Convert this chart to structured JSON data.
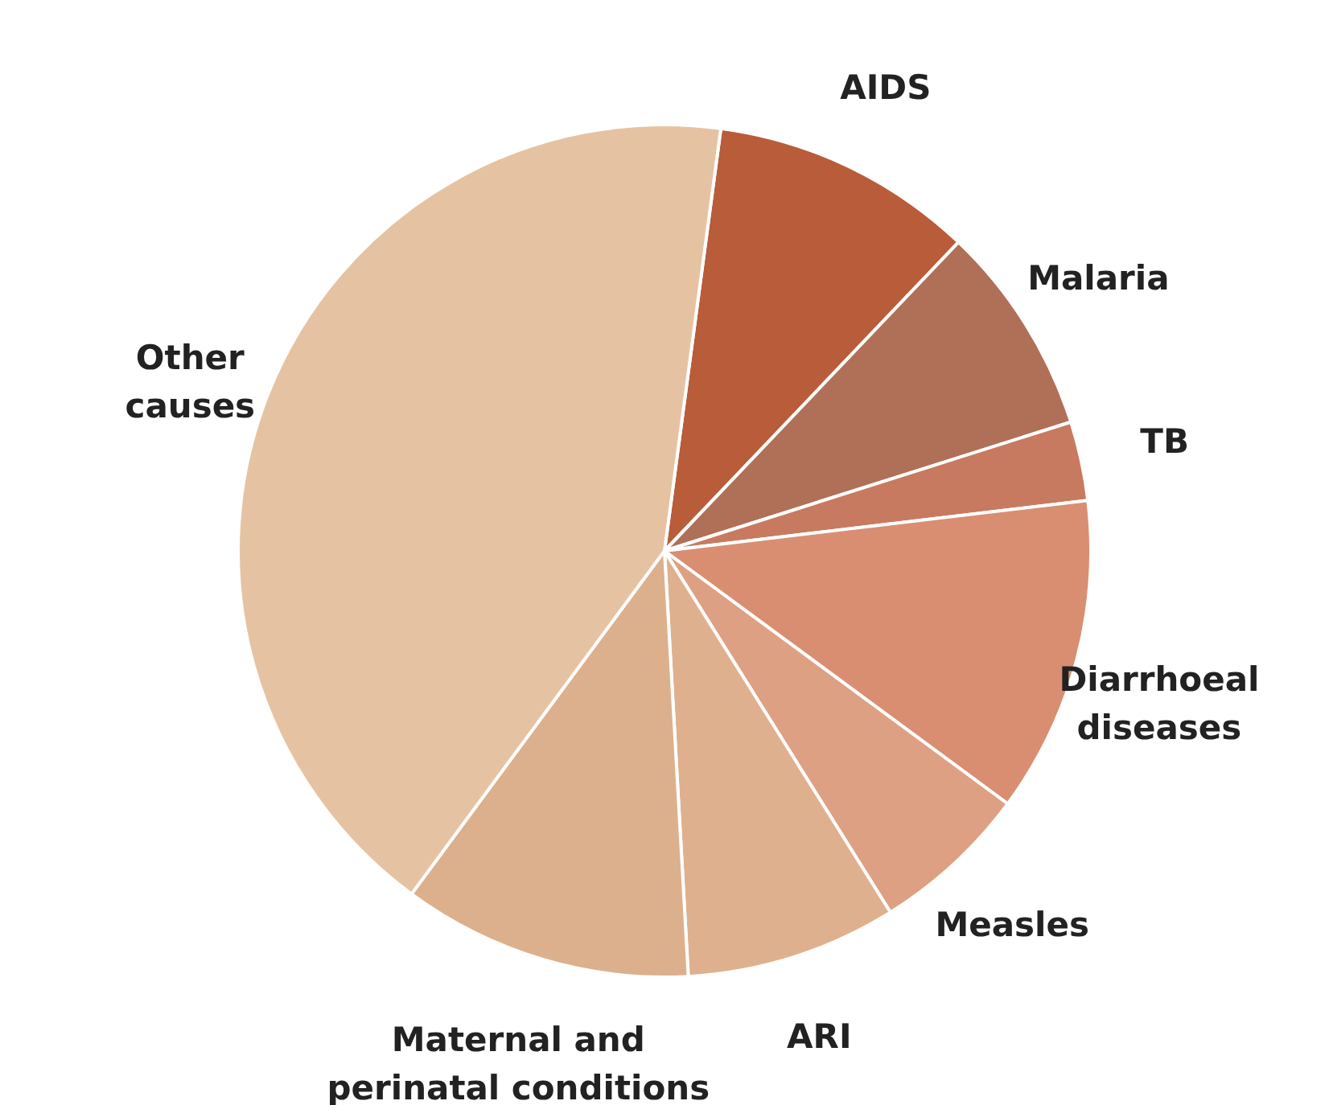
{
  "chart_data": {
    "type": "pie",
    "categories": [
      "AIDS",
      "Malaria",
      "TB",
      "Diarrhoeal\ndiseases",
      "Measles",
      "ARI",
      "Maternal and\nperinatal conditions",
      "Other\ncauses"
    ],
    "values": [
      10,
      8,
      3,
      12,
      6,
      8,
      11,
      42
    ],
    "colors": [
      "#b85c3a",
      "#b07058",
      "#c87a60",
      "#d98e72",
      "#dea082",
      "#dfb08e",
      "#dcb08c",
      "#e5c3a2"
    ],
    "legend": false
  }
}
